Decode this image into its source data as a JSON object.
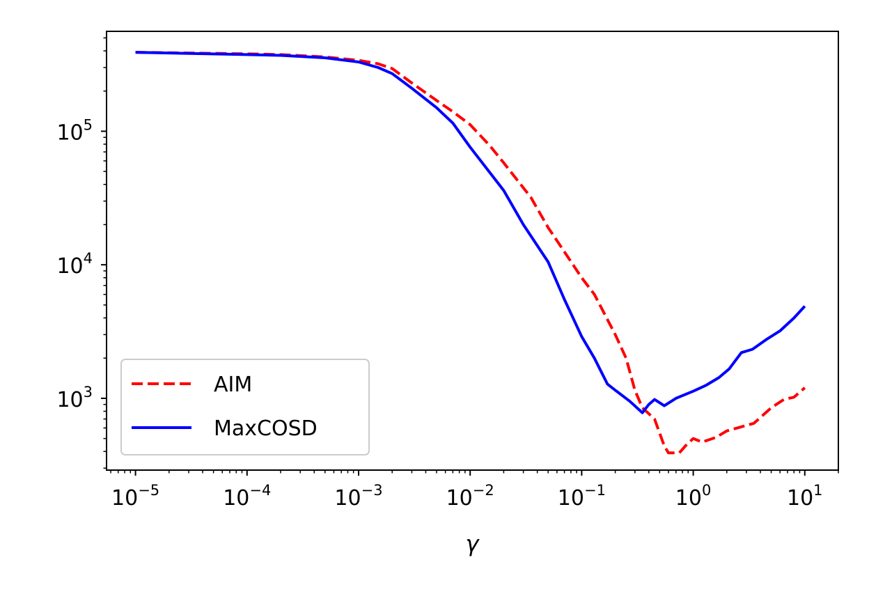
{
  "chart_data": {
    "type": "line",
    "title": "",
    "xlabel": "γ",
    "ylabel": "",
    "x_scale": "log",
    "y_scale": "log",
    "xlim": [
      5.5e-06,
      20
    ],
    "ylim": [
      290,
      560000
    ],
    "grid": false,
    "legend_position": "lower-left",
    "x_ticks": [
      {
        "value": 1e-05,
        "base": "10",
        "exp": "−5"
      },
      {
        "value": 0.0001,
        "base": "10",
        "exp": "−4"
      },
      {
        "value": 0.001,
        "base": "10",
        "exp": "−3"
      },
      {
        "value": 0.01,
        "base": "10",
        "exp": "−2"
      },
      {
        "value": 0.1,
        "base": "10",
        "exp": "−1"
      },
      {
        "value": 1,
        "base": "10",
        "exp": "0"
      },
      {
        "value": 10,
        "base": "10",
        "exp": "1"
      }
    ],
    "y_ticks": [
      {
        "value": 1000,
        "base": "10",
        "exp": "3"
      },
      {
        "value": 10000,
        "base": "10",
        "exp": "4"
      },
      {
        "value": 100000,
        "base": "10",
        "exp": "5"
      }
    ],
    "series": [
      {
        "name": "AIM",
        "color": "#ff0000",
        "dash": "dashed",
        "x": [
          1e-05,
          0.0001,
          0.0002,
          0.0005,
          0.001,
          0.0015,
          0.002,
          0.003,
          0.005,
          0.007,
          0.01,
          0.015,
          0.02,
          0.035,
          0.05,
          0.07,
          0.1,
          0.13,
          0.2,
          0.25,
          0.3,
          0.35,
          0.45,
          0.55,
          0.6,
          0.75,
          0.85,
          1.0,
          1.2,
          1.6,
          2.0,
          3.5,
          5.0,
          6.5,
          8.0,
          10.0
        ],
        "y": [
          390000,
          380000,
          375000,
          360000,
          340000,
          320000,
          295000,
          230000,
          170000,
          140000,
          112000,
          78000,
          58000,
          32000,
          19000,
          12500,
          8000,
          6000,
          3000,
          2000,
          1150,
          850,
          700,
          440,
          390,
          390,
          440,
          500,
          470,
          510,
          570,
          650,
          850,
          980,
          1020,
          1200
        ]
      },
      {
        "name": "MaxCOSD",
        "color": "#0000ff",
        "dash": "solid",
        "x": [
          1e-05,
          0.0001,
          0.0002,
          0.0005,
          0.001,
          0.0015,
          0.002,
          0.003,
          0.005,
          0.007,
          0.01,
          0.02,
          0.03,
          0.05,
          0.07,
          0.1,
          0.13,
          0.17,
          0.2,
          0.27,
          0.35,
          0.4,
          0.45,
          0.55,
          0.7,
          1.0,
          1.3,
          1.7,
          2.1,
          2.7,
          3.4,
          4.5,
          6.0,
          8.0,
          10.0
        ],
        "y": [
          390000,
          375000,
          370000,
          355000,
          330000,
          300000,
          270000,
          210000,
          150000,
          115000,
          76000,
          36000,
          20000,
          10500,
          5500,
          2900,
          2000,
          1280,
          1150,
          950,
          780,
          900,
          980,
          880,
          1000,
          1130,
          1250,
          1430,
          1660,
          2200,
          2330,
          2750,
          3200,
          4000,
          4900
        ]
      }
    ]
  }
}
